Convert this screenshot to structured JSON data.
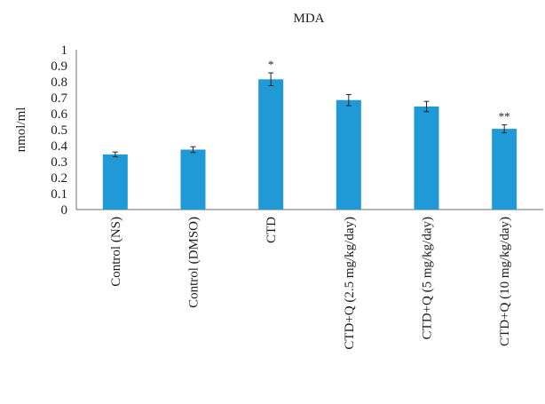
{
  "chart_data": {
    "type": "bar",
    "title": "MDA",
    "xlabel": "",
    "ylabel": "nmol/ml",
    "ylim": [
      0,
      1
    ],
    "yticks": [
      "0",
      "0.1",
      "0.2",
      "0.3",
      "0.4",
      "0.5",
      "0.6",
      "0.7",
      "0.8",
      "0.9",
      "1"
    ],
    "categories": [
      "Control (NS)",
      "Control (DMSO)",
      "CTD",
      "CTD+Q (2.5 mg/kg/day)",
      "CTD+Q (5 mg/kg/day)",
      "CTD+Q (10 mg/kg/day)"
    ],
    "values": [
      0.345,
      0.375,
      0.815,
      0.685,
      0.645,
      0.505
    ],
    "errors": [
      0.015,
      0.018,
      0.04,
      0.035,
      0.032,
      0.025
    ],
    "annotations": [
      "",
      "",
      "*",
      "",
      "",
      "**"
    ],
    "bar_color": "#1f9ad6",
    "grid": false,
    "legend": "none"
  }
}
